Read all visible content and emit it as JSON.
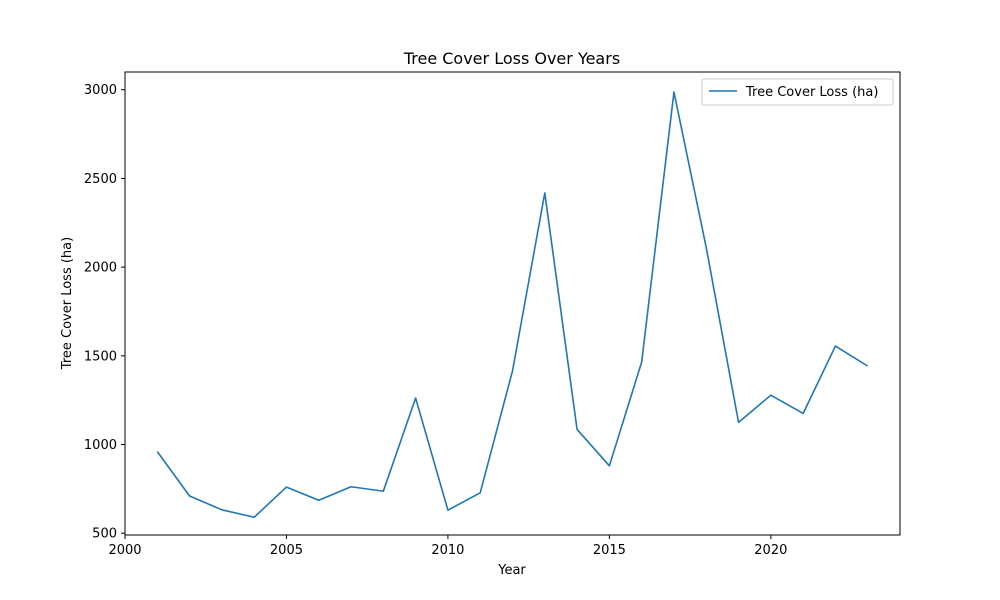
{
  "chart_data": {
    "type": "line",
    "title": "Tree Cover Loss Over Years",
    "xlabel": "Year",
    "ylabel": "Tree Cover Loss (ha)",
    "xlim": [
      2000,
      2024
    ],
    "ylim": [
      490,
      3100
    ],
    "xticks": [
      2000,
      2005,
      2010,
      2015,
      2020
    ],
    "yticks": [
      500,
      1000,
      1500,
      2000,
      2500,
      3000
    ],
    "grid": false,
    "legend_position": "top-right",
    "series": [
      {
        "name": "Tree Cover Loss (ha)",
        "color": "#1f77b4",
        "x": [
          2001,
          2002,
          2003,
          2004,
          2005,
          2006,
          2007,
          2008,
          2009,
          2010,
          2011,
          2012,
          2013,
          2014,
          2015,
          2016,
          2017,
          2018,
          2019,
          2020,
          2021,
          2022,
          2023
        ],
        "y": [
          960,
          710,
          632,
          590,
          760,
          686,
          762,
          737,
          1262,
          630,
          728,
          1415,
          2418,
          1085,
          880,
          1465,
          2987,
          2110,
          1125,
          1278,
          1175,
          1555,
          1442
        ]
      }
    ]
  }
}
